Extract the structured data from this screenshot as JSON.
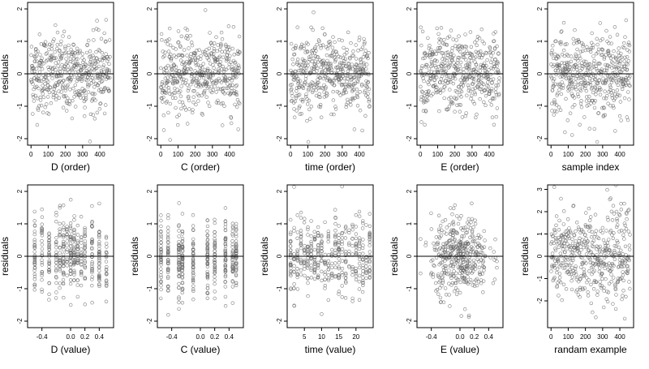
{
  "figure": {
    "ylabel": "residuals",
    "point_color": "#666666",
    "frame_color": "#000000"
  },
  "chart_data": [
    {
      "type": "scatter",
      "xlabel": "D (order)",
      "ylabel": "residuals",
      "xlim": [
        -20,
        480
      ],
      "ylim": [
        -2.2,
        2.2
      ],
      "xticks": [
        0,
        100,
        200,
        300,
        400
      ],
      "xtick_labels": [
        "0",
        "100",
        "200",
        "300",
        "400"
      ],
      "yticks": [
        -2,
        -1,
        0,
        1,
        2
      ],
      "ytick_labels": [
        "-2",
        "-1",
        "0",
        "1",
        "2"
      ],
      "pattern": "order",
      "n": 470,
      "y_spread": 0.6,
      "hline": 0
    },
    {
      "type": "scatter",
      "xlabel": "C (order)",
      "ylabel": "residuals",
      "xlim": [
        -20,
        480
      ],
      "ylim": [
        -2.2,
        2.2
      ],
      "xticks": [
        0,
        100,
        200,
        300,
        400
      ],
      "xtick_labels": [
        "0",
        "100",
        "200",
        "300",
        "400"
      ],
      "yticks": [
        -2,
        -1,
        0,
        1,
        2
      ],
      "ytick_labels": [
        "-2",
        "-1",
        "0",
        "1",
        "2"
      ],
      "pattern": "order",
      "n": 470,
      "y_spread": 0.6,
      "hline": 0
    },
    {
      "type": "scatter",
      "xlabel": "time (order)",
      "ylabel": "residuals",
      "xlim": [
        -20,
        480
      ],
      "ylim": [
        -2.2,
        2.2
      ],
      "xticks": [
        0,
        100,
        200,
        300,
        400
      ],
      "xtick_labels": [
        "0",
        "100",
        "200",
        "300",
        "400"
      ],
      "yticks": [
        -2,
        -1,
        0,
        1,
        2
      ],
      "ytick_labels": [
        "-2",
        "-1",
        "0",
        "1",
        "2"
      ],
      "pattern": "order",
      "n": 470,
      "y_spread": 0.6,
      "hline": 0
    },
    {
      "type": "scatter",
      "xlabel": "E (order)",
      "ylabel": "residuals",
      "xlim": [
        -20,
        480
      ],
      "ylim": [
        -2.2,
        2.2
      ],
      "xticks": [
        0,
        100,
        200,
        300,
        400
      ],
      "xtick_labels": [
        "0",
        "100",
        "200",
        "300",
        "400"
      ],
      "yticks": [
        -2,
        -1,
        0,
        1,
        2
      ],
      "ytick_labels": [
        "-2",
        "-1",
        "0",
        "1",
        "2"
      ],
      "pattern": "order",
      "n": 470,
      "y_spread": 0.6,
      "hline": 0
    },
    {
      "type": "scatter",
      "xlabel": "sample index",
      "ylabel": "residuals",
      "xlim": [
        -20,
        480
      ],
      "ylim": [
        -2.2,
        2.2
      ],
      "xticks": [
        0,
        100,
        200,
        300,
        400
      ],
      "xtick_labels": [
        "0",
        "100",
        "200",
        "300",
        "400"
      ],
      "yticks": [
        -2,
        -1,
        0,
        1,
        2
      ],
      "ytick_labels": [
        "-2",
        "-1",
        "0",
        "1",
        "2"
      ],
      "pattern": "order",
      "n": 470,
      "y_spread": 0.6,
      "hline": 0
    },
    {
      "type": "scatter",
      "xlabel": "D (value)",
      "ylabel": "residuals",
      "xlim": [
        -0.6,
        0.6
      ],
      "ylim": [
        -2.2,
        2.2
      ],
      "xticks": [
        -0.4,
        0,
        0.2,
        0.4
      ],
      "xtick_labels": [
        "-0.4",
        "0.0",
        "0.2",
        "0.4"
      ],
      "yticks": [
        -2,
        -1,
        0,
        1,
        2
      ],
      "ytick_labels": [
        "-2",
        "-1",
        "0",
        "1",
        "2"
      ],
      "pattern": "value",
      "x_levels": [
        -0.5,
        -0.4,
        -0.3,
        -0.2,
        -0.15,
        -0.1,
        -0.05,
        0,
        0.05,
        0.1,
        0.15,
        0.2,
        0.3,
        0.4,
        0.5
      ],
      "n": 420,
      "y_spread": 0.6,
      "hline": 0
    },
    {
      "type": "scatter",
      "xlabel": "C (value)",
      "ylabel": "residuals",
      "xlim": [
        -0.6,
        0.6
      ],
      "ylim": [
        -2.2,
        2.2
      ],
      "xticks": [
        -0.4,
        0,
        0.2,
        0.4
      ],
      "xtick_labels": [
        "-0.4",
        "0.0",
        "0.2",
        "0.4"
      ],
      "yticks": [
        -2,
        -1,
        0,
        1,
        2
      ],
      "ytick_labels": [
        "-2",
        "-1",
        "0",
        "1",
        "2"
      ],
      "pattern": "value",
      "x_levels": [
        -0.55,
        -0.45,
        -0.3,
        -0.25,
        -0.1,
        0.1,
        0.2,
        0.35,
        0.45,
        0.5
      ],
      "n": 420,
      "y_spread": 0.6,
      "hline": 0
    },
    {
      "type": "scatter",
      "xlabel": "time (value)",
      "ylabel": "residuals",
      "xlim": [
        0,
        25
      ],
      "ylim": [
        -2.2,
        2.2
      ],
      "xticks": [
        5,
        10,
        15,
        20
      ],
      "xtick_labels": [
        "5",
        "10",
        "15",
        "20"
      ],
      "yticks": [
        -2,
        -1,
        0,
        1,
        2
      ],
      "ytick_labels": [
        "-2",
        "-1",
        "0",
        "1",
        "2"
      ],
      "pattern": "value",
      "x_levels": [
        1,
        2,
        3,
        4,
        5,
        6,
        7,
        8,
        9,
        10,
        11,
        12,
        13,
        14,
        15,
        16,
        17,
        18,
        19,
        20,
        21,
        22,
        23,
        24
      ],
      "n": 420,
      "y_spread": 0.6,
      "hline": 0
    },
    {
      "type": "scatter",
      "xlabel": "E (value)",
      "ylabel": "residuals",
      "xlim": [
        -0.6,
        0.6
      ],
      "ylim": [
        -2.2,
        2.2
      ],
      "xticks": [
        -0.4,
        0,
        0.2,
        0.4
      ],
      "xtick_labels": [
        "-0.4",
        "0.0",
        "0.2",
        "0.4"
      ],
      "yticks": [
        -2,
        -1,
        0,
        1,
        2
      ],
      "ytick_labels": [
        "-2",
        "-1",
        "0",
        "1",
        "2"
      ],
      "pattern": "cloud",
      "n": 420,
      "y_spread": 0.6,
      "hline": 0
    },
    {
      "type": "scatter",
      "xlabel": "randam example",
      "ylabel": "residuals",
      "xlim": [
        -20,
        480
      ],
      "ylim": [
        -3.2,
        3.2
      ],
      "xticks": [
        0,
        100,
        200,
        300,
        400
      ],
      "xtick_labels": [
        "0",
        "100",
        "200",
        "300",
        "400"
      ],
      "yticks": [
        -2,
        -1,
        0,
        1,
        2,
        3
      ],
      "ytick_labels": [
        "-2",
        "-1",
        "0",
        "1",
        "2",
        "3"
      ],
      "pattern": "order",
      "n": 470,
      "y_spread": 1.0,
      "hline": 0
    }
  ]
}
